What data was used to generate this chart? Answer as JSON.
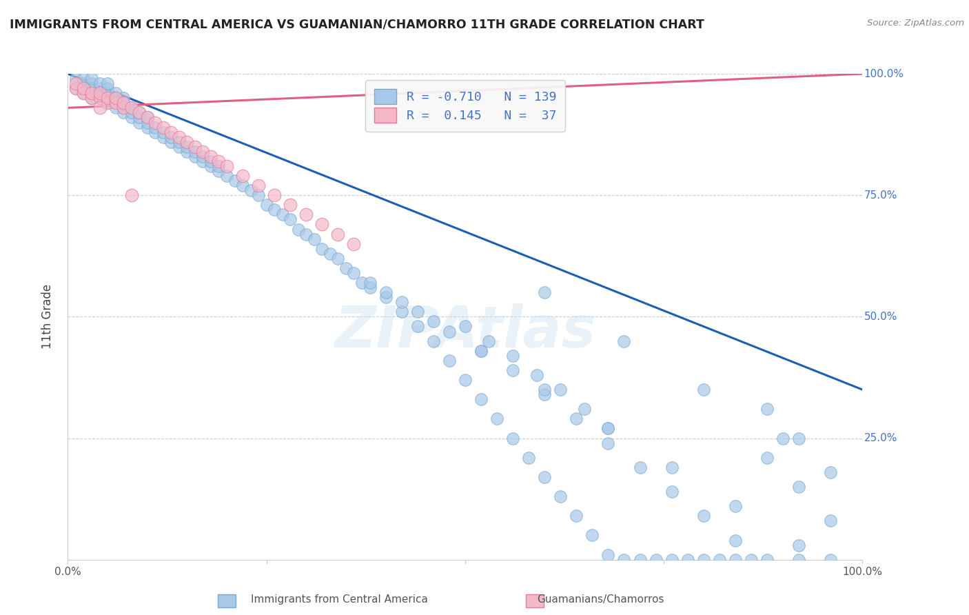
{
  "title": "IMMIGRANTS FROM CENTRAL AMERICA VS GUAMANIAN/CHAMORRO 11TH GRADE CORRELATION CHART",
  "source": "Source: ZipAtlas.com",
  "ylabel": "11th Grade",
  "xlim": [
    0.0,
    1.0
  ],
  "ylim": [
    0.0,
    1.0
  ],
  "blue_R": -0.71,
  "blue_N": 139,
  "pink_R": 0.145,
  "pink_N": 37,
  "blue_scatter_color": "#a8c8e8",
  "blue_scatter_edge": "#7aaad0",
  "pink_scatter_color": "#f4b8c8",
  "pink_scatter_edge": "#e87898",
  "blue_line_color": "#1a5fb4",
  "pink_line_color": "#e06080",
  "grid_color": "#cccccc",
  "legend_label1": "R = -0.710   N = 139",
  "legend_label2": "R =  0.145   N =  37",
  "bottom_label1": "Immigrants from Central America",
  "bottom_label2": "Guamanians/Chamorros",
  "blue_scatter_x": [
    0.01,
    0.01,
    0.02,
    0.02,
    0.02,
    0.02,
    0.03,
    0.03,
    0.03,
    0.03,
    0.03,
    0.04,
    0.04,
    0.04,
    0.04,
    0.05,
    0.05,
    0.05,
    0.05,
    0.05,
    0.06,
    0.06,
    0.06,
    0.06,
    0.07,
    0.07,
    0.07,
    0.07,
    0.08,
    0.08,
    0.08,
    0.09,
    0.09,
    0.09,
    0.1,
    0.1,
    0.1,
    0.11,
    0.11,
    0.12,
    0.12,
    0.13,
    0.13,
    0.14,
    0.14,
    0.15,
    0.15,
    0.16,
    0.16,
    0.17,
    0.17,
    0.18,
    0.18,
    0.19,
    0.19,
    0.2,
    0.21,
    0.22,
    0.23,
    0.24,
    0.25,
    0.26,
    0.27,
    0.28,
    0.29,
    0.3,
    0.31,
    0.32,
    0.33,
    0.34,
    0.35,
    0.36,
    0.37,
    0.38,
    0.4,
    0.42,
    0.44,
    0.46,
    0.48,
    0.5,
    0.52,
    0.54,
    0.56,
    0.58,
    0.6,
    0.62,
    0.64,
    0.66,
    0.68,
    0.7,
    0.72,
    0.74,
    0.76,
    0.78,
    0.8,
    0.82,
    0.84,
    0.86,
    0.5,
    0.53,
    0.56,
    0.59,
    0.62,
    0.65,
    0.68,
    0.38,
    0.42,
    0.46,
    0.52,
    0.56,
    0.6,
    0.64,
    0.68,
    0.72,
    0.76,
    0.8,
    0.84,
    0.88,
    0.92,
    0.96,
    0.4,
    0.44,
    0.48,
    0.52,
    0.6,
    0.68,
    0.76,
    0.84,
    0.92,
    0.88,
    0.92,
    0.96,
    0.88,
    0.92,
    0.96,
    0.6,
    0.7,
    0.8,
    0.9
  ],
  "blue_scatter_y": [
    0.97,
    0.99,
    0.96,
    0.97,
    0.98,
    0.99,
    0.95,
    0.96,
    0.97,
    0.98,
    0.99,
    0.95,
    0.96,
    0.97,
    0.98,
    0.94,
    0.95,
    0.96,
    0.97,
    0.98,
    0.93,
    0.94,
    0.95,
    0.96,
    0.92,
    0.93,
    0.94,
    0.95,
    0.91,
    0.92,
    0.93,
    0.9,
    0.91,
    0.92,
    0.89,
    0.9,
    0.91,
    0.88,
    0.89,
    0.87,
    0.88,
    0.86,
    0.87,
    0.85,
    0.86,
    0.84,
    0.85,
    0.83,
    0.84,
    0.82,
    0.83,
    0.81,
    0.82,
    0.8,
    0.81,
    0.79,
    0.78,
    0.77,
    0.76,
    0.75,
    0.73,
    0.72,
    0.71,
    0.7,
    0.68,
    0.67,
    0.66,
    0.64,
    0.63,
    0.62,
    0.6,
    0.59,
    0.57,
    0.56,
    0.54,
    0.51,
    0.48,
    0.45,
    0.41,
    0.37,
    0.33,
    0.29,
    0.25,
    0.21,
    0.17,
    0.13,
    0.09,
    0.05,
    0.01,
    0.0,
    0.0,
    0.0,
    0.0,
    0.0,
    0.0,
    0.0,
    0.0,
    0.0,
    0.48,
    0.45,
    0.42,
    0.38,
    0.35,
    0.31,
    0.27,
    0.57,
    0.53,
    0.49,
    0.43,
    0.39,
    0.34,
    0.29,
    0.24,
    0.19,
    0.14,
    0.09,
    0.04,
    0.0,
    0.0,
    0.0,
    0.55,
    0.51,
    0.47,
    0.43,
    0.35,
    0.27,
    0.19,
    0.11,
    0.03,
    0.21,
    0.15,
    0.08,
    0.31,
    0.25,
    0.18,
    0.55,
    0.45,
    0.35,
    0.25
  ],
  "pink_scatter_x": [
    0.01,
    0.01,
    0.02,
    0.02,
    0.03,
    0.03,
    0.04,
    0.04,
    0.05,
    0.05,
    0.06,
    0.06,
    0.07,
    0.07,
    0.08,
    0.09,
    0.1,
    0.11,
    0.12,
    0.13,
    0.14,
    0.15,
    0.16,
    0.17,
    0.18,
    0.19,
    0.2,
    0.22,
    0.24,
    0.26,
    0.28,
    0.3,
    0.32,
    0.34,
    0.36,
    0.08,
    0.04
  ],
  "pink_scatter_y": [
    0.97,
    0.98,
    0.96,
    0.97,
    0.95,
    0.96,
    0.95,
    0.96,
    0.94,
    0.95,
    0.94,
    0.95,
    0.93,
    0.94,
    0.93,
    0.92,
    0.91,
    0.9,
    0.89,
    0.88,
    0.87,
    0.86,
    0.85,
    0.84,
    0.83,
    0.82,
    0.81,
    0.79,
    0.77,
    0.75,
    0.73,
    0.71,
    0.69,
    0.67,
    0.65,
    0.75,
    0.93
  ],
  "blue_line_x0": 0.0,
  "blue_line_y0": 1.0,
  "blue_line_x1": 1.0,
  "blue_line_y1": 0.35,
  "pink_line_x0": 0.0,
  "pink_line_y0": 0.93,
  "pink_line_x1": 1.0,
  "pink_line_y1": 1.0
}
